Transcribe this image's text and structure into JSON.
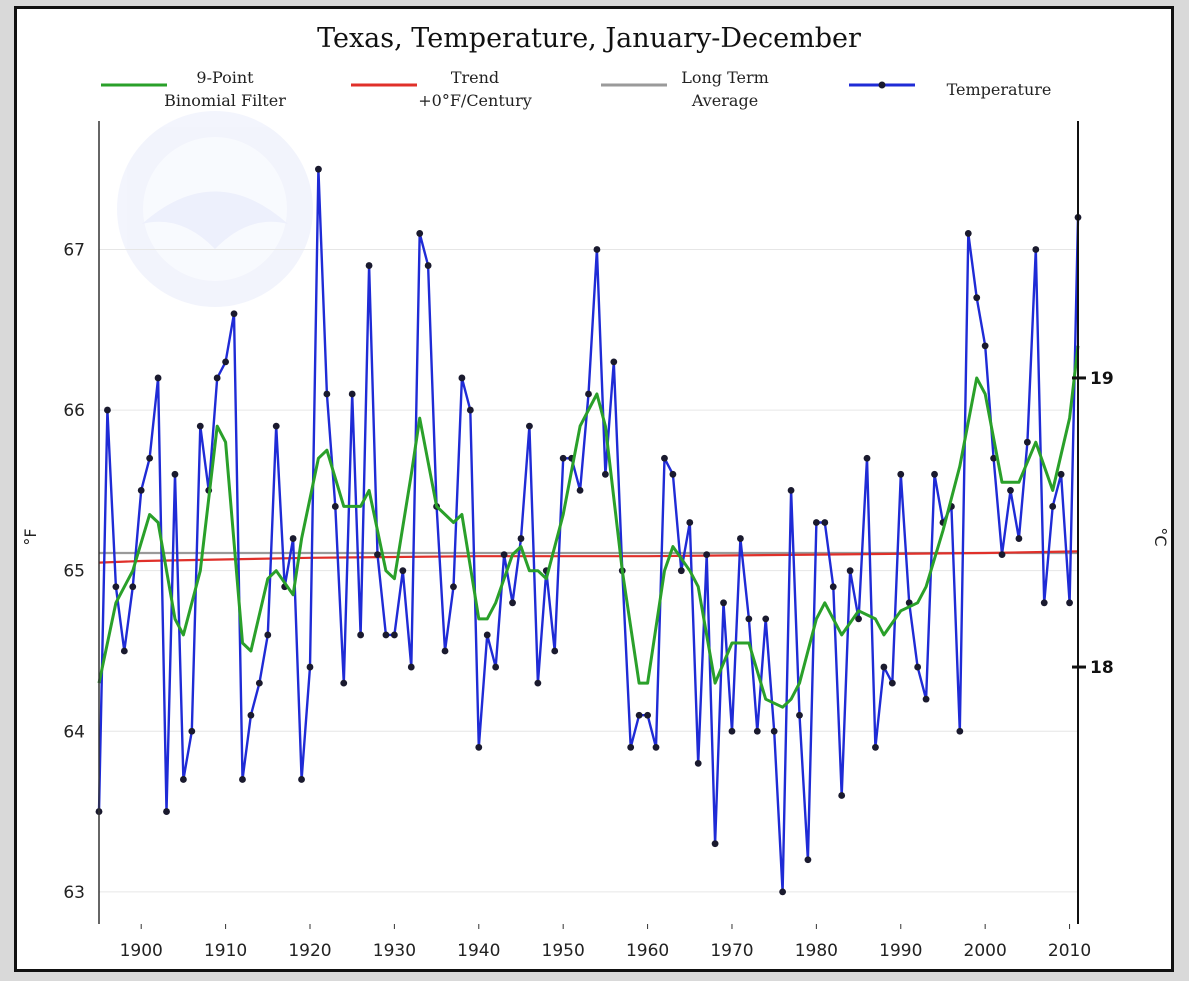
{
  "chart_data": {
    "type": "line",
    "title": "Texas, Temperature, January-December",
    "ylabel": "°F",
    "ylabel_right": "°C",
    "xlim": [
      1895,
      2011
    ],
    "ylim": [
      62.8,
      67.8
    ],
    "yticks": [
      63,
      64,
      65,
      66,
      67
    ],
    "xticks": [
      1900,
      1910,
      1920,
      1930,
      1940,
      1950,
      1960,
      1970,
      1980,
      1990,
      2000,
      2010
    ],
    "right_ticks_c": [
      18,
      19
    ],
    "grid": true,
    "legend_position": "top",
    "legend": [
      {
        "key": "filter",
        "label_lines": [
          "9-Point",
          "Binomial Filter"
        ],
        "color": "#2aa02a"
      },
      {
        "key": "trend",
        "label_lines": [
          "Trend",
          "+0°F/Century"
        ],
        "color": "#e0302a"
      },
      {
        "key": "average",
        "label_lines": [
          "Long Term",
          "Average"
        ],
        "color": "#9a9a9a"
      },
      {
        "key": "temperature",
        "label_lines": [
          "Temperature"
        ],
        "color": "#1f2bd6"
      }
    ],
    "watermark": "NOAA",
    "series": [
      {
        "key": "temperature",
        "name": "Temperature",
        "color": "#1f2bd6",
        "x_start": 1895,
        "values": [
          63.5,
          66.0,
          64.9,
          64.5,
          64.9,
          65.5,
          65.7,
          66.2,
          63.5,
          65.6,
          63.7,
          64.0,
          65.9,
          65.5,
          66.2,
          66.3,
          66.6,
          63.7,
          64.1,
          64.3,
          64.6,
          65.9,
          64.9,
          65.2,
          63.7,
          64.4,
          67.5,
          66.1,
          65.4,
          64.3,
          66.1,
          64.6,
          66.9,
          65.1,
          64.6,
          64.6,
          65.0,
          64.4,
          67.1,
          66.9,
          65.4,
          64.5,
          64.9,
          66.2,
          66.0,
          63.9,
          64.6,
          64.4,
          65.1,
          64.8,
          65.2,
          65.9,
          64.3,
          65.0,
          64.5,
          65.7,
          65.7,
          65.5,
          66.1,
          67.0,
          65.6,
          66.3,
          65.0,
          63.9,
          64.1,
          64.1,
          63.9,
          65.7,
          65.6,
          65.0,
          65.3,
          63.8,
          65.1,
          63.3,
          64.8,
          64.0,
          65.2,
          64.7,
          64.0,
          64.7,
          64.0,
          63.0,
          65.5,
          64.1,
          63.2,
          65.3,
          65.3,
          64.9,
          63.6,
          65.0,
          64.7,
          65.7,
          63.9,
          64.4,
          64.3,
          65.6,
          64.8,
          64.4,
          64.2,
          65.6,
          65.3,
          65.4,
          64.0,
          67.1,
          66.7,
          66.4,
          65.7,
          65.1,
          65.5,
          65.2,
          65.8,
          67.0,
          64.8,
          65.4,
          65.6,
          64.8,
          67.2
        ]
      },
      {
        "key": "filter",
        "name": "9-Point Binomial Filter",
        "color": "#2aa02a",
        "x": [
          1895,
          1897,
          1899,
          1901,
          1902,
          1904,
          1905,
          1907,
          1909,
          1910,
          1912,
          1913,
          1915,
          1916,
          1918,
          1919,
          1921,
          1922,
          1924,
          1926,
          1927,
          1929,
          1930,
          1932,
          1933,
          1935,
          1937,
          1938,
          1940,
          1941,
          1942,
          1944,
          1945,
          1946,
          1947,
          1948,
          1950,
          1952,
          1954,
          1955,
          1957,
          1959,
          1960,
          1962,
          1963,
          1965,
          1966,
          1968,
          1970,
          1972,
          1974,
          1976,
          1977,
          1978,
          1980,
          1981,
          1983,
          1985,
          1987,
          1988,
          1990,
          1992,
          1993,
          1995,
          1997,
          1999,
          2000,
          2002,
          2004,
          2006,
          2008,
          2010,
          2011
        ],
        "values": [
          64.3,
          64.8,
          65.0,
          65.35,
          65.3,
          64.7,
          64.6,
          65.0,
          65.9,
          65.8,
          64.55,
          64.5,
          64.95,
          65.0,
          64.85,
          65.2,
          65.7,
          65.75,
          65.4,
          65.4,
          65.5,
          65.0,
          64.95,
          65.6,
          65.95,
          65.4,
          65.3,
          65.35,
          64.7,
          64.7,
          64.8,
          65.1,
          65.15,
          65.0,
          65.0,
          64.95,
          65.35,
          65.9,
          66.1,
          65.9,
          65.0,
          64.3,
          64.3,
          65.0,
          65.15,
          65.0,
          64.9,
          64.3,
          64.55,
          64.55,
          64.2,
          64.15,
          64.2,
          64.3,
          64.7,
          64.8,
          64.6,
          64.75,
          64.7,
          64.6,
          64.75,
          64.8,
          64.9,
          65.25,
          65.65,
          66.2,
          66.1,
          65.55,
          65.55,
          65.8,
          65.5,
          65.95,
          66.4
        ]
      },
      {
        "key": "trend",
        "name": "Trend +0°F/Century",
        "color": "#e0302a",
        "x": [
          1895,
          1900,
          1920,
          1940,
          1960,
          1980,
          2000,
          2011
        ],
        "values": [
          65.05,
          65.06,
          65.08,
          65.09,
          65.09,
          65.1,
          65.11,
          65.12
        ]
      },
      {
        "key": "average",
        "name": "Long Term Average",
        "color": "#9a9a9a",
        "x": [
          1895,
          2011
        ],
        "values": [
          65.11,
          65.11
        ]
      }
    ]
  }
}
